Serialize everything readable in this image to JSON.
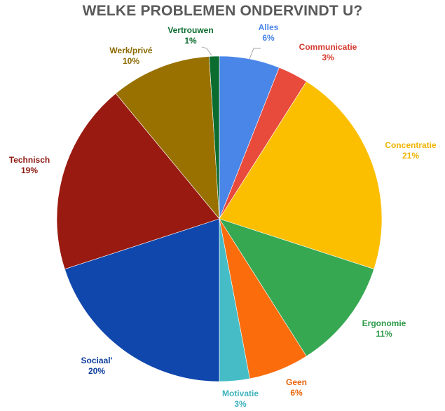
{
  "chart_data": {
    "type": "pie",
    "title": "WELKE PROBLEMEN ONDERVINDT U?",
    "slices": [
      {
        "label": "Alles",
        "value": 6,
        "value_label": "6%",
        "color": "#4a86e8"
      },
      {
        "label": "Communicatie",
        "value": 3,
        "value_label": "3%",
        "color": "#e84a3c"
      },
      {
        "label": "Concentratie",
        "value": 21,
        "value_label": "21%",
        "color": "#fcbf00"
      },
      {
        "label": "Ergonomie",
        "value": 11,
        "value_label": "11%",
        "color": "#36a852"
      },
      {
        "label": "Geen",
        "value": 6,
        "value_label": "6%",
        "color": "#fa6c0c"
      },
      {
        "label": "Motivatie",
        "value": 3,
        "value_label": "3%",
        "color": "#46bdc6"
      },
      {
        "label": "Sociaal'",
        "value": 20,
        "value_label": "20%",
        "color": "#0f47ad"
      },
      {
        "label": "Technisch",
        "value": 19,
        "value_label": "19%",
        "color": "#991a10"
      },
      {
        "label": "Werk/privé",
        "value": 10,
        "value_label": "10%",
        "color": "#987100"
      },
      {
        "label": "Vertrouwen",
        "value": 1,
        "value_label": "1%",
        "color": "#0b6c2f"
      }
    ],
    "label_colors": {
      "Alles": "#4a86e8",
      "Communicatie": "#d43a2e",
      "Concentratie": "#f0b400",
      "Ergonomie": "#2e9a49",
      "Geen": "#e8640a",
      "Motivatie": "#3fb3bd",
      "Sociaal'": "#0f3f9c",
      "Technisch": "#8c1810",
      "Werk/privé": "#8c6900",
      "Vertrouwen": "#0b6c2f"
    },
    "start": "12 o'clock",
    "direction": "clockwise",
    "legend": "none"
  }
}
